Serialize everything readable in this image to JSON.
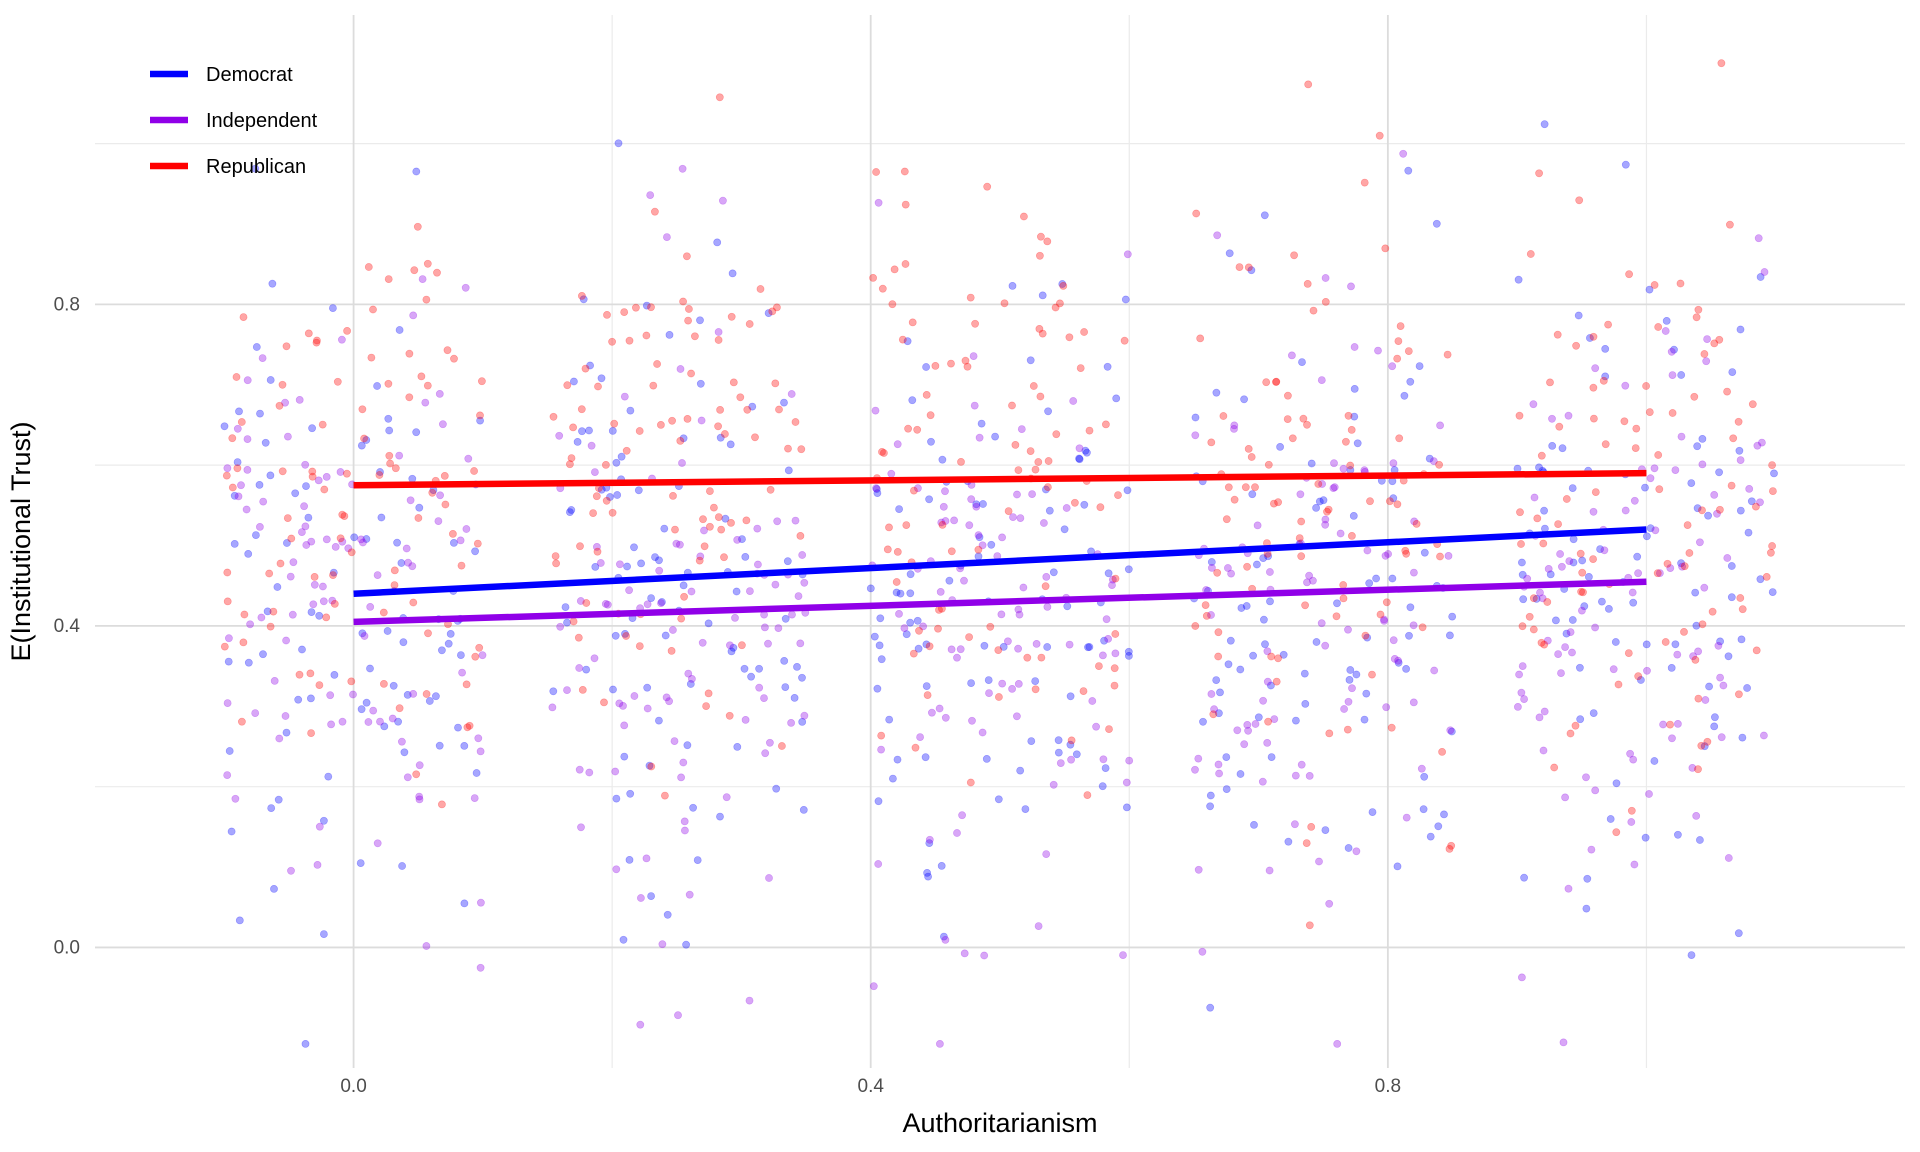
{
  "chart_data": {
    "type": "scatter",
    "title": "",
    "xlabel": "Authoritarianism",
    "ylabel": "E(Institutional Trust)",
    "xlim": [
      -0.2,
      1.2
    ],
    "ylim": [
      -0.15,
      1.16
    ],
    "x_ticks": [
      0.0,
      0.4,
      0.8
    ],
    "x_tick_labels": [
      "0.0",
      "0.4",
      "0.8"
    ],
    "x_minor_ticks": [
      0.2,
      0.6,
      1.0
    ],
    "y_ticks": [
      0.0,
      0.4,
      0.8
    ],
    "y_tick_labels": [
      "0.0",
      "0.4",
      "0.8"
    ],
    "y_minor_ticks": [
      0.2,
      0.6,
      1.0
    ],
    "grid": true,
    "legend_position": "top-left",
    "jitter_centers": [
      0.0,
      0.25,
      0.5,
      0.75,
      1.0
    ],
    "jitter_half_width": 0.1,
    "points_per_group_per_series": 95,
    "point_opacity": 0.35,
    "series": [
      {
        "name": "Democrat",
        "color": "#0000ff",
        "line_x": [
          0.0,
          1.0
        ],
        "line_y": [
          0.44,
          0.52
        ],
        "points_center_y": 0.46,
        "points_spread": 0.2
      },
      {
        "name": "Independent",
        "color": "#9000e8",
        "line_x": [
          0.0,
          1.0
        ],
        "line_y": [
          0.405,
          0.455
        ],
        "points_center_y": 0.42,
        "points_spread": 0.2
      },
      {
        "name": "Republican",
        "color": "#ff0000",
        "line_x": [
          0.0,
          1.0
        ],
        "line_y": [
          0.575,
          0.59
        ],
        "points_center_y": 0.56,
        "points_spread": 0.19
      }
    ]
  }
}
